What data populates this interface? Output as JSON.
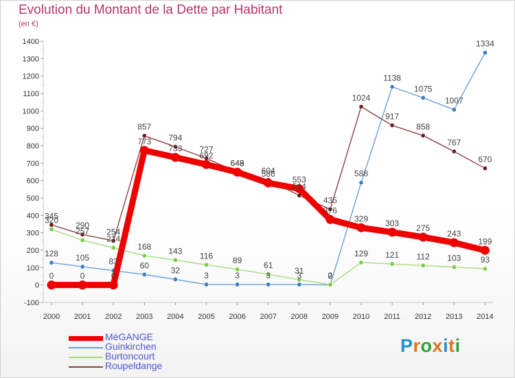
{
  "title": "Evolution du Montant de la Dette par Habitant",
  "unit": "(en €)",
  "logo": {
    "text": "Proxiti",
    "letter_colors": [
      "#1f8fd3",
      "#e4731b",
      "#2aa33b",
      "#e4731b",
      "#1f8fd3",
      "#e4731b",
      "#2aa33b"
    ]
  },
  "chart_data": {
    "type": "line",
    "title": "Evolution du Montant de la Dette par Habitant",
    "ylabel": "(en €)",
    "xlabel": "",
    "x": [
      "2000",
      "2001",
      "2002",
      "2003",
      "2004",
      "2005",
      "2006",
      "2007",
      "2008",
      "2009",
      "2010",
      "2011",
      "2012",
      "2013",
      "2014"
    ],
    "ylim": [
      -100,
      1400
    ],
    "yticks": [
      -100,
      0,
      100,
      200,
      300,
      400,
      500,
      600,
      700,
      800,
      900,
      1000,
      1100,
      1200,
      1300,
      1400
    ],
    "grid": false,
    "legend_position": "bottom-left",
    "series": [
      {
        "name": "Guinkirchen",
        "color": "#6a9fd6",
        "point_color": "#3b7fc4",
        "values": [
          128,
          105,
          83,
          60,
          32,
          3,
          3,
          3,
          3,
          0,
          588,
          1138,
          1075,
          1007,
          1334
        ]
      },
      {
        "name": "Burtoncourt",
        "color": "#a6db7c",
        "point_color": "#7ccc45",
        "values": [
          320,
          257,
          214,
          168,
          143,
          116,
          89,
          61,
          31,
          2,
          129,
          121,
          112,
          103,
          93
        ]
      },
      {
        "name": "Roupeldange",
        "color": "#8b4040",
        "point_color": "#6b1f24",
        "values": [
          345,
          290,
          254,
          857,
          794,
          727,
          649,
          604,
          514,
          435,
          1024,
          917,
          858,
          767,
          670
        ]
      },
      {
        "name": "MéGANGE",
        "color": "#ee0000",
        "point_color": "#ee0000",
        "values": [
          0,
          0,
          0,
          773,
          733,
          692,
          648,
          586,
          553,
          376,
          329,
          303,
          275,
          243,
          199
        ]
      }
    ],
    "data_labels": [
      {
        "series": "Guinkirchen",
        "labels": [
          "128",
          "105",
          "83",
          "60",
          "32",
          "3",
          "3",
          "3",
          "3",
          "0",
          "588",
          "1138",
          "1075",
          "1007",
          "1334"
        ]
      },
      {
        "series": "Burtoncourt",
        "labels": [
          "320",
          "257",
          "214",
          "168",
          "143",
          "116",
          "89",
          "61",
          "31",
          "2",
          "129",
          "121",
          "112",
          "103",
          "93"
        ]
      },
      {
        "series": "Roupeldange",
        "labels": [
          "345",
          "290",
          "254",
          "857",
          "794",
          "727",
          "649",
          "604",
          "514",
          "435",
          "1024",
          "917",
          "858",
          "767",
          "670"
        ]
      },
      {
        "series": "MéGANGE",
        "labels": [
          "0",
          "0",
          "0",
          "773",
          "733",
          "692",
          "648",
          "586",
          "553",
          "376",
          "329",
          "303",
          "275",
          "243",
          "199"
        ]
      }
    ]
  },
  "legend": [
    {
      "name": "MéGANGE",
      "color": "#ee0000"
    },
    {
      "name": "Guinkirchen",
      "color": "#6a9fd6"
    },
    {
      "name": "Burtoncourt",
      "color": "#a6db7c"
    },
    {
      "name": "Roupeldange",
      "color": "#8b4040"
    }
  ]
}
